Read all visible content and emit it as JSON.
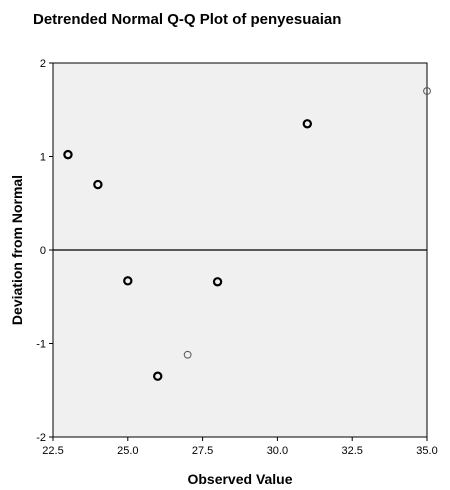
{
  "chart_data": {
    "type": "scatter",
    "title": "Detrended Normal Q-Q Plot of penyesuaian",
    "xlabel": "Observed Value",
    "ylabel": "Deviation from Normal",
    "xlim": [
      22.5,
      35.0
    ],
    "ylim": [
      -2,
      2
    ],
    "x_ticks": [
      "22.5",
      "25.0",
      "27.5",
      "30.0",
      "32.5",
      "35.0"
    ],
    "y_ticks": [
      "2",
      "1",
      "0",
      "-1",
      "-2"
    ],
    "reference_line_y": 0,
    "grid": false,
    "plot_background": "#f0f0f0",
    "marker_color": "#000000",
    "points": [
      {
        "x": 23,
        "y": 1.02,
        "weight": "bold"
      },
      {
        "x": 24,
        "y": 0.7,
        "weight": "bold"
      },
      {
        "x": 25,
        "y": -0.33,
        "weight": "bold"
      },
      {
        "x": 26,
        "y": -1.35,
        "weight": "bold"
      },
      {
        "x": 27,
        "y": -1.12,
        "weight": "thin"
      },
      {
        "x": 28,
        "y": -0.34,
        "weight": "bold"
      },
      {
        "x": 31,
        "y": 1.35,
        "weight": "bold"
      },
      {
        "x": 35,
        "y": 1.7,
        "weight": "thin"
      }
    ]
  }
}
